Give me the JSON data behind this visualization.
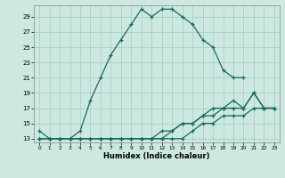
{
  "xlabel": "Humidex (Indice chaleur)",
  "background_color": "#cce8e0",
  "grid_color": "#aacfc8",
  "line_color": "#1a6b5a",
  "xlim": [
    -0.5,
    23.5
  ],
  "ylim": [
    12.5,
    30.5
  ],
  "yticks": [
    13,
    15,
    17,
    19,
    21,
    23,
    25,
    27,
    29
  ],
  "xticks": [
    0,
    1,
    2,
    3,
    4,
    5,
    6,
    7,
    8,
    9,
    10,
    11,
    12,
    13,
    14,
    15,
    16,
    17,
    18,
    19,
    20,
    21,
    22,
    23
  ],
  "series": [
    {
      "x": [
        0,
        1,
        2,
        3,
        4,
        5,
        6,
        7,
        8,
        9,
        10,
        11,
        12,
        13,
        14,
        15,
        16,
        17,
        18,
        19,
        20
      ],
      "y": [
        14,
        13,
        13,
        13,
        14,
        18,
        21,
        24,
        26,
        28,
        30,
        29,
        30,
        30,
        29,
        28,
        26,
        25,
        22,
        21,
        21
      ]
    },
    {
      "x": [
        0,
        1,
        2,
        3,
        4,
        5,
        6,
        7,
        8,
        9,
        10,
        11,
        12,
        13,
        14,
        15,
        16,
        17,
        18,
        19,
        20,
        21,
        22,
        23
      ],
      "y": [
        13,
        13,
        13,
        13,
        13,
        13,
        13,
        13,
        13,
        13,
        13,
        13,
        13,
        14,
        15,
        15,
        16,
        17,
        17,
        18,
        17,
        19,
        17,
        17
      ]
    },
    {
      "x": [
        0,
        1,
        2,
        3,
        4,
        5,
        6,
        7,
        8,
        9,
        10,
        11,
        12,
        13,
        14,
        15,
        16,
        17,
        18,
        19,
        20,
        21,
        22,
        23
      ],
      "y": [
        13,
        13,
        13,
        13,
        13,
        13,
        13,
        13,
        13,
        13,
        13,
        13,
        14,
        14,
        15,
        15,
        16,
        16,
        17,
        17,
        17,
        19,
        17,
        17
      ]
    },
    {
      "x": [
        0,
        1,
        2,
        3,
        4,
        5,
        6,
        7,
        8,
        9,
        10,
        11,
        12,
        13,
        14,
        15,
        16,
        17,
        18,
        19,
        20,
        21,
        22,
        23
      ],
      "y": [
        13,
        13,
        13,
        13,
        13,
        13,
        13,
        13,
        13,
        13,
        13,
        13,
        13,
        13,
        13,
        14,
        15,
        15,
        16,
        16,
        16,
        17,
        17,
        17
      ]
    }
  ]
}
